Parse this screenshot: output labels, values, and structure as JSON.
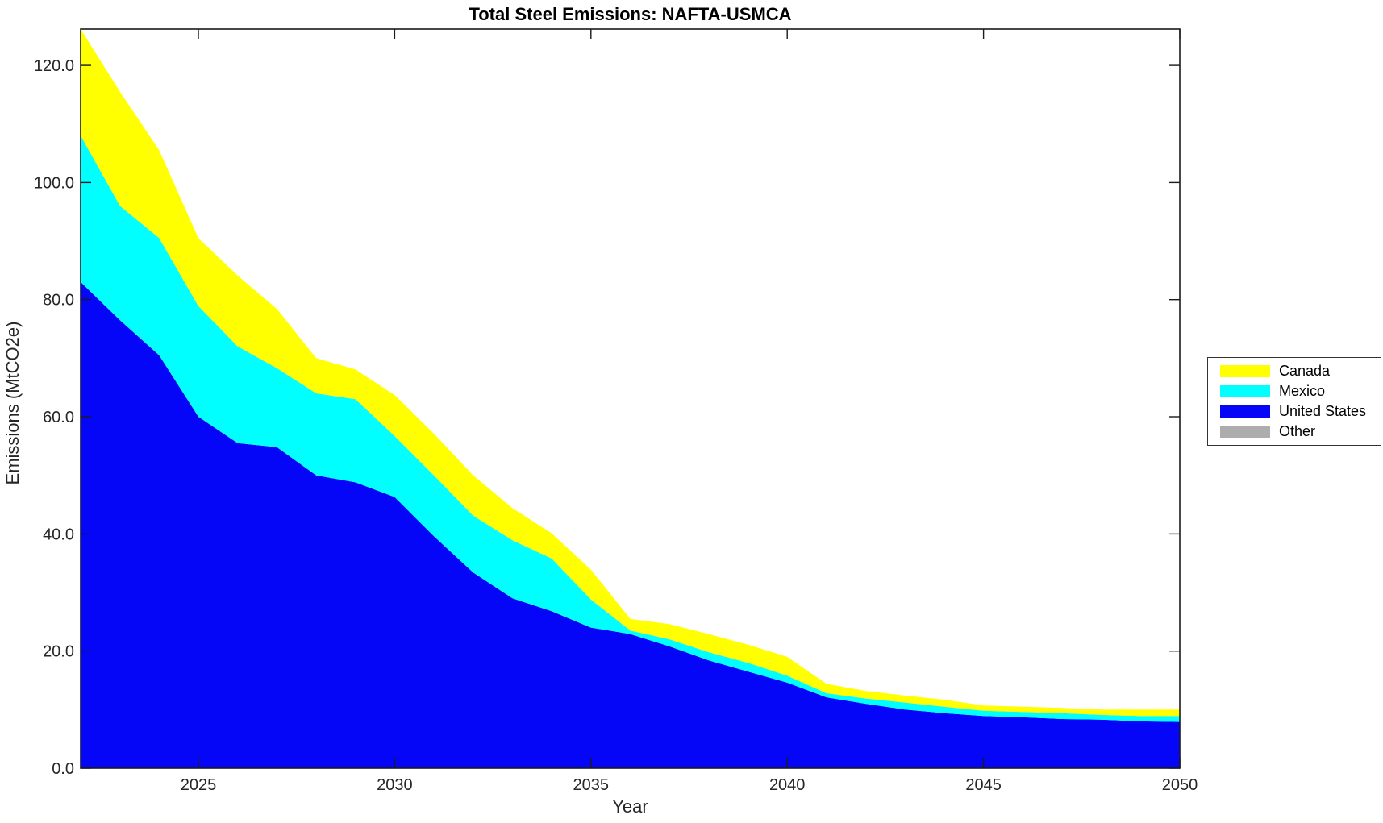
{
  "title": "Total Steel Emissions: NAFTA-USMCA",
  "xlabel": "Year",
  "ylabel": "Emissions (MtCO2e)",
  "chart_data": {
    "type": "area",
    "stacked": true,
    "title": "Total Steel Emissions: NAFTA-USMCA",
    "xlabel": "Year",
    "ylabel": "Emissions (MtCO2e)",
    "grid": false,
    "legend_position": "right-outside",
    "xlim": [
      2022,
      2050
    ],
    "ylim": [
      0,
      126.2
    ],
    "x_ticks": [
      2025,
      2030,
      2035,
      2040,
      2045,
      2050
    ],
    "x_tick_labels": [
      "2025",
      "2030",
      "2035",
      "2040",
      "2045",
      "2050"
    ],
    "y_ticks": [
      0,
      20,
      40,
      60,
      80,
      100,
      120
    ],
    "y_tick_labels": [
      "0.0",
      "20.0",
      "40.0",
      "60.0",
      "80.0",
      "100.0",
      "120.0"
    ],
    "x": [
      2022,
      2023,
      2024,
      2025,
      2026,
      2027,
      2028,
      2029,
      2030,
      2031,
      2032,
      2033,
      2034,
      2035,
      2036,
      2037,
      2038,
      2039,
      2040,
      2041,
      2042,
      2043,
      2044,
      2045,
      2046,
      2047,
      2048,
      2049,
      2050
    ],
    "stack_bottom_to_top": [
      "United States",
      "Mexico",
      "Canada",
      "Other"
    ],
    "series": [
      {
        "name": "Canada",
        "color": "#FFFF00",
        "values": [
          18.2,
          19.5,
          15.0,
          11.6,
          12.1,
          10.1,
          6.0,
          5.1,
          7.0,
          7.1,
          6.9,
          5.5,
          4.3,
          5.1,
          2.0,
          2.6,
          3.1,
          3.1,
          3.2,
          1.6,
          1.3,
          1.2,
          1.2,
          0.9,
          0.9,
          0.9,
          0.9,
          1.1,
          1.1
        ]
      },
      {
        "name": "Mexico",
        "color": "#00FFFF",
        "values": [
          25.0,
          19.5,
          20.0,
          18.9,
          16.5,
          13.5,
          14.0,
          14.2,
          10.4,
          10.4,
          9.7,
          9.9,
          9.0,
          4.8,
          0.6,
          1.2,
          1.4,
          1.5,
          1.2,
          0.7,
          0.9,
          1.2,
          1.1,
          0.9,
          0.9,
          1.0,
          0.8,
          0.9,
          1.0
        ]
      },
      {
        "name": "United States",
        "color": "#0505F8",
        "values": [
          83.0,
          76.5,
          70.5,
          60.0,
          55.5,
          54.8,
          50.0,
          48.8,
          46.3,
          39.6,
          33.4,
          29.0,
          26.8,
          24.0,
          22.9,
          20.8,
          18.4,
          16.5,
          14.6,
          12.1,
          11.0,
          10.0,
          9.4,
          8.9,
          8.7,
          8.4,
          8.3,
          8.0,
          7.9
        ]
      },
      {
        "name": "Other",
        "color": "#ADADAD",
        "values": [
          0,
          0,
          0,
          0,
          0,
          0,
          0,
          0,
          0,
          0,
          0,
          0,
          0,
          0,
          0,
          0,
          0,
          0,
          0,
          0,
          0,
          0,
          0,
          0,
          0,
          0,
          0,
          0,
          0
        ]
      }
    ],
    "axis_color": "#1a1a1a",
    "tick_label_color": "#262626",
    "tick_label_font_px": 20
  },
  "layout_note": ""
}
